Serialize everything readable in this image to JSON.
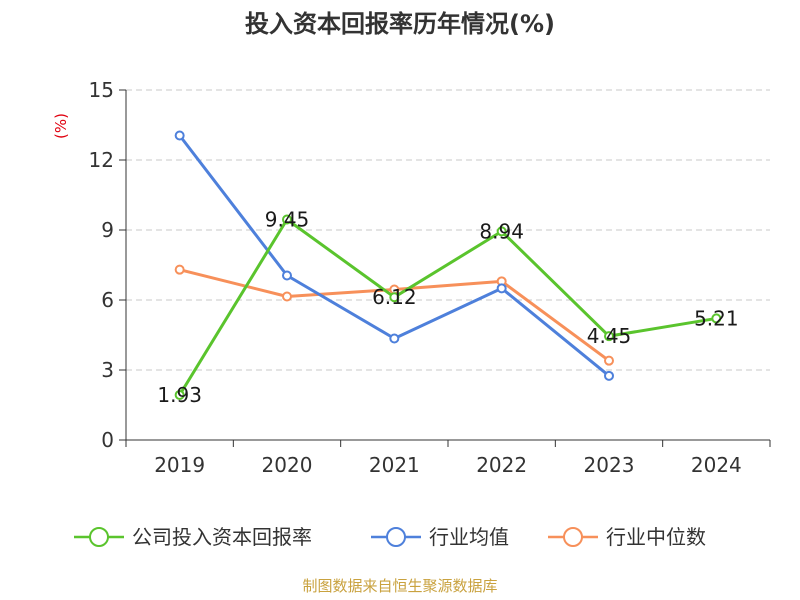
{
  "chart_data": {
    "type": "line",
    "title": "投入资本回报率历年情况(%)",
    "unit_label": "(%)",
    "categories": [
      "2019",
      "2020",
      "2021",
      "2022",
      "2023",
      "2024"
    ],
    "ylim": [
      0,
      15
    ],
    "yticks": [
      "0",
      "3",
      "6",
      "9",
      "12",
      "15"
    ],
    "grid": true,
    "legend_position": "bottom",
    "series": [
      {
        "name": "公司投入资本回报率",
        "color": "#5ac42d",
        "values": [
          1.93,
          9.45,
          6.12,
          8.94,
          4.45,
          5.21
        ],
        "labels": [
          "1.93",
          "9.45",
          "6.12",
          "8.94",
          "4.45",
          "5.21"
        ]
      },
      {
        "name": "行业均值",
        "color": "#4e80db",
        "values": [
          13.05,
          7.05,
          4.35,
          6.5,
          2.75,
          null
        ]
      },
      {
        "name": "行业中位数",
        "color": "#f7905a",
        "values": [
          7.3,
          6.15,
          6.45,
          6.8,
          3.4,
          null
        ]
      }
    ]
  },
  "source": "制图数据来自恒生聚源数据库"
}
